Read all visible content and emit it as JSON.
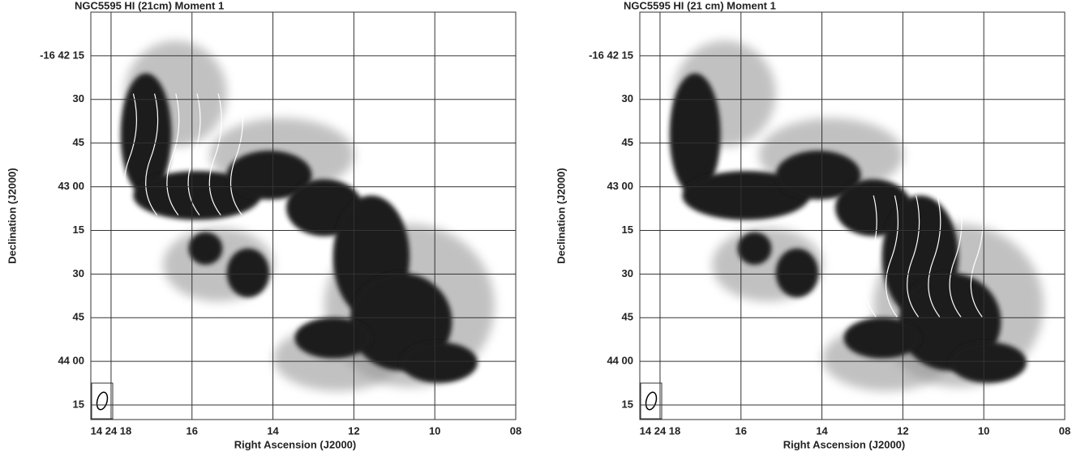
{
  "chart_data": [
    {
      "type": "map",
      "title": "NGC5595 HI (21cm) Moment 1",
      "xlabel": "Right Ascension (J2000)",
      "ylabel": "Declination (J2000)",
      "xlim": [
        18.5,
        8
      ],
      "ylim": [
        0,
        140
      ],
      "grid": true,
      "xticks": [
        {
          "value": 18,
          "label": "14 24 18"
        },
        16,
        14,
        12,
        10,
        {
          "value": 8,
          "label": "08"
        }
      ],
      "yticks": [
        {
          "value": 15,
          "label": "-16 42 15"
        },
        30,
        45,
        {
          "value": 60,
          "label": "43 00"
        },
        {
          "value": 75,
          "label": "15"
        },
        {
          "value": 90,
          "label": "30"
        },
        {
          "value": 105,
          "label": "45"
        },
        {
          "value": 120,
          "label": "44 00"
        },
        {
          "value": 135,
          "label": "15"
        }
      ]
    },
    {
      "type": "map",
      "title": "NGC5595 HI (21 cm) Moment 1",
      "xlabel": "Right Ascension (J2000)",
      "ylabel": "Declination (J2000)",
      "xlim": [
        18.5,
        8
      ],
      "ylim": [
        0,
        140
      ],
      "grid": true,
      "xticks": [
        {
          "value": 18,
          "label": "14 24 18"
        },
        16,
        14,
        12,
        10,
        {
          "value": 8,
          "label": "08"
        }
      ],
      "yticks": [
        {
          "value": 15,
          "label": "-16 42 15"
        },
        30,
        45,
        {
          "value": 60,
          "label": "43 00"
        },
        {
          "value": 75,
          "label": "15"
        },
        {
          "value": 90,
          "label": "30"
        },
        {
          "value": 105,
          "label": "45"
        },
        {
          "value": 120,
          "label": "44 00"
        },
        {
          "value": 135,
          "label": "15"
        }
      ]
    }
  ]
}
